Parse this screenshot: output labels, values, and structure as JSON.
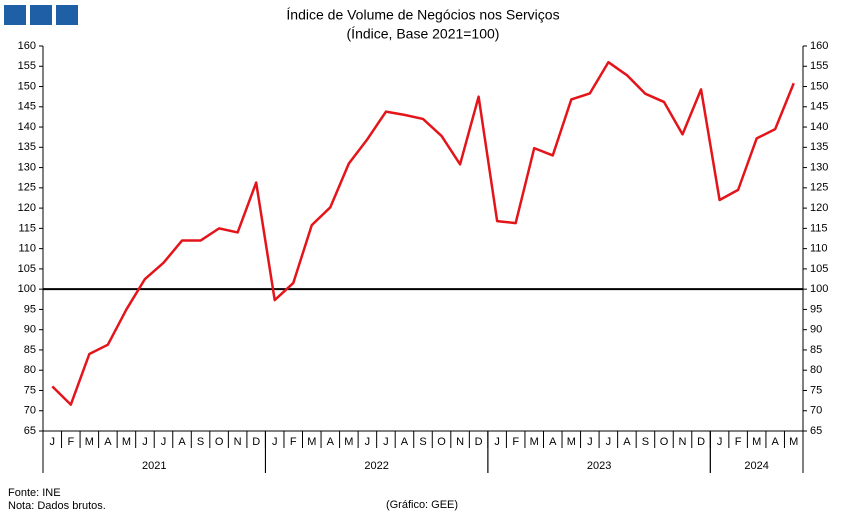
{
  "chart_data": {
    "type": "line",
    "title": "Índice de Volume de Negócios nos Serviços",
    "subtitle": "(Índice, Base 2021=100)",
    "categories": [
      "J",
      "F",
      "M",
      "A",
      "M",
      "J",
      "J",
      "A",
      "S",
      "O",
      "N",
      "D",
      "J",
      "F",
      "M",
      "A",
      "M",
      "J",
      "J",
      "A",
      "S",
      "O",
      "N",
      "D",
      "J",
      "F",
      "M",
      "A",
      "M",
      "J",
      "J",
      "A",
      "S",
      "O",
      "N",
      "D",
      "J",
      "F",
      "M",
      "A",
      "M"
    ],
    "years": [
      "2021",
      "2022",
      "2023",
      "2024"
    ],
    "series": [
      {
        "name": "Índice",
        "color": "#e3151a",
        "values": [
          76,
          71.5,
          84,
          86.3,
          95,
          102.5,
          106.5,
          112,
          112,
          115,
          114,
          126.3,
          97.3,
          101.5,
          115.8,
          120.2,
          131,
          137,
          143.8,
          143,
          142,
          137.8,
          130.8,
          147.5,
          116.8,
          116.3,
          134.8,
          133,
          146.8,
          148.3,
          156,
          152.8,
          148.2,
          146.2,
          138.2,
          149.3,
          122,
          124.5,
          137.2,
          139.5,
          150.8
        ]
      }
    ],
    "reference_line": 100,
    "ylim": [
      65,
      160
    ],
    "yticks": [
      65,
      70,
      75,
      80,
      85,
      90,
      95,
      100,
      105,
      110,
      115,
      120,
      125,
      130,
      135,
      140,
      145,
      150,
      155,
      160
    ],
    "y2ticks": [
      65,
      70,
      75,
      80,
      85,
      90,
      95,
      100,
      105,
      110,
      115,
      120,
      125,
      130,
      135,
      140,
      145,
      150,
      155,
      160
    ],
    "grid": false,
    "source": "Fonte: INE",
    "note": "Nota: Dados brutos.",
    "credit": "(Gráfico: GEE)"
  }
}
